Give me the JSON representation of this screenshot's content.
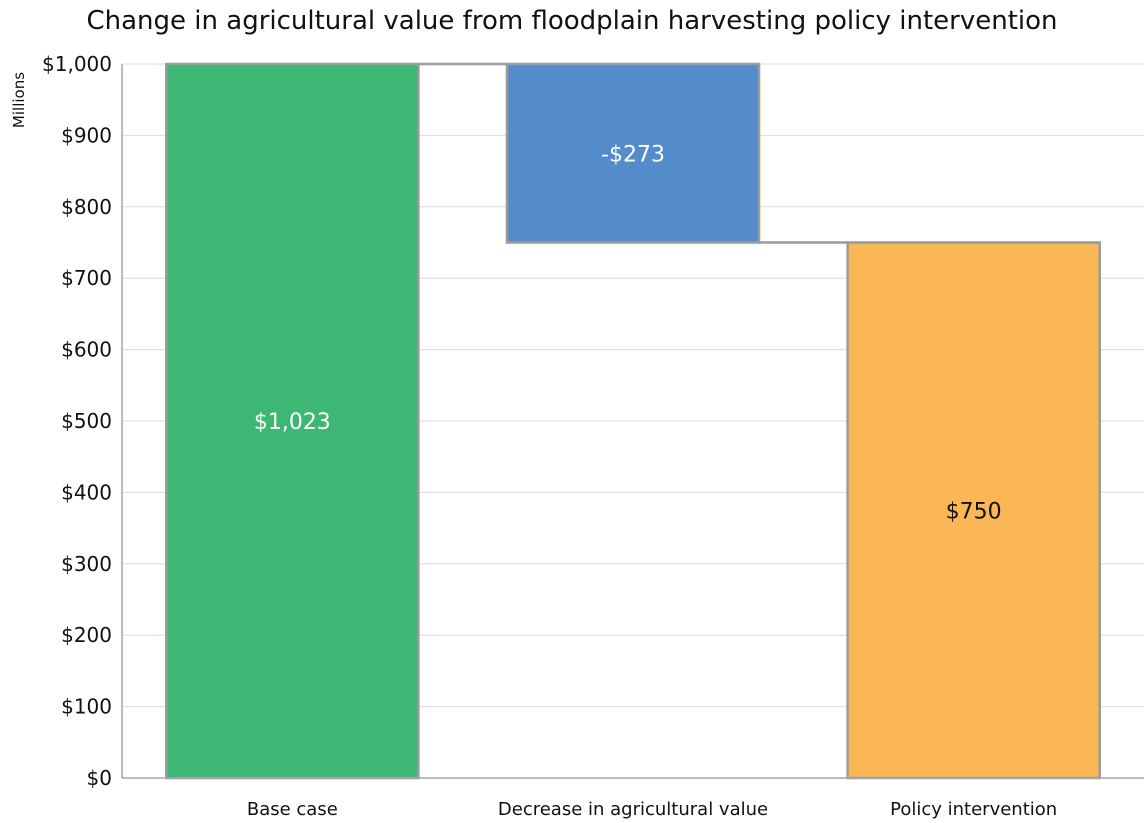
{
  "chart_data": {
    "type": "bar",
    "subtype": "waterfall",
    "title": "Change in agricultural value from floodplain harvesting policy intervention",
    "ylabel": "Millions",
    "ylim": [
      0,
      1000
    ],
    "yticks": [
      "$0",
      "$100",
      "$200",
      "$300",
      "$400",
      "$500",
      "$600",
      "$700",
      "$800",
      "$900",
      "$1,000"
    ],
    "grid": true,
    "bars": [
      {
        "category": "Base case",
        "start": 0,
        "end": 1023,
        "label": "$1,023",
        "color": "#3DB874",
        "label_color": "#ffffff"
      },
      {
        "category": "Decrease in agricultural value",
        "start": 1023,
        "end": 750,
        "label": "-$273",
        "color": "#538BCB",
        "label_color": "#ffffff"
      },
      {
        "category": "Policy intervention",
        "start": 0,
        "end": 750,
        "label": "$750",
        "color": "#FBB756",
        "label_color": "#111111"
      }
    ]
  }
}
